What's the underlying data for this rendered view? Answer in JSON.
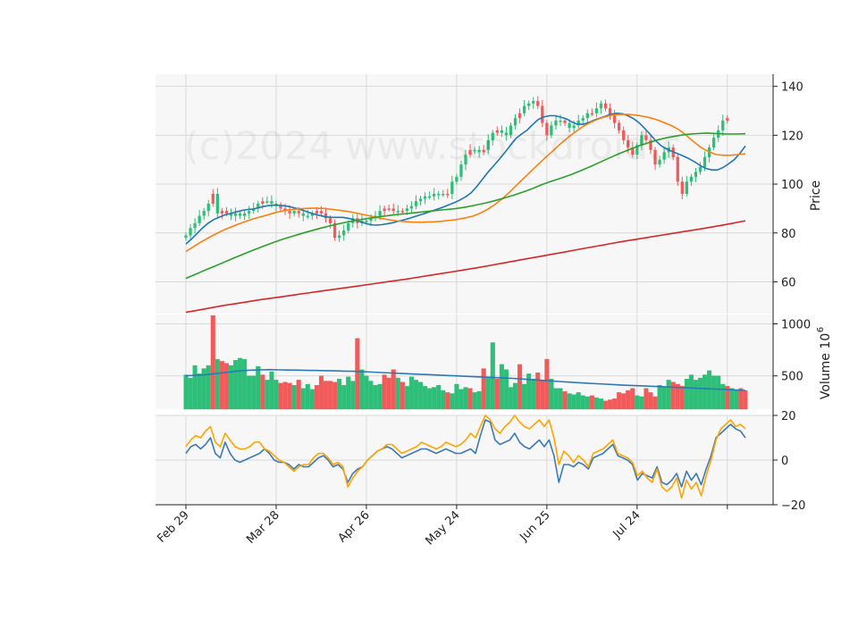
{
  "watermark": "(c)2024 www.stockdroid.c",
  "colors": {
    "panel_bg": "#f7f7f7",
    "grid": "#d9d9d9",
    "up": "#2dbe77",
    "down": "#f25a5a",
    "ma_fast": "#1f77b4",
    "ma_mid": "#ff7f0e",
    "ma_slow": "#2ca02c",
    "ma_long": "#d62728",
    "vol_ma": "#2a7ab8",
    "osc_fast": "#3d7ab7",
    "osc_slow": "#ffa500"
  },
  "chart_data": [
    {
      "type": "candlestick",
      "ylabel": "Price",
      "ylim": [
        47,
        145
      ],
      "yticks": [
        60,
        80,
        100,
        120,
        140
      ],
      "x_tick_labels": [
        "Feb 29",
        "Mar 28",
        "Apr 26",
        "May 24",
        "Jun 25",
        "Jul 24",
        ""
      ],
      "x_tick_indices": [
        0,
        20,
        40,
        60,
        80,
        100,
        120
      ],
      "series": [
        {
          "name": "Close",
          "values": [
            79,
            82,
            84,
            87,
            89,
            92,
            96,
            88,
            89,
            88,
            87,
            88,
            87,
            88,
            89,
            90,
            92,
            93,
            93,
            92,
            91,
            90,
            89,
            88,
            89,
            88,
            87,
            87,
            88,
            89,
            88,
            86,
            84,
            78,
            79,
            81,
            84,
            86,
            84,
            85,
            85,
            86,
            87,
            89,
            90,
            90,
            89,
            89,
            89,
            90,
            91,
            93,
            94,
            95,
            95,
            96,
            96,
            96,
            96,
            101,
            103,
            108,
            112,
            114,
            114,
            113,
            114,
            118,
            121,
            122,
            121,
            120,
            124,
            127,
            129,
            132,
            133,
            134,
            132,
            125,
            120,
            124,
            126,
            126,
            125,
            123,
            124,
            126,
            127,
            129,
            129,
            131,
            133,
            131,
            128,
            125,
            122,
            118,
            115,
            112,
            116,
            120,
            118,
            114,
            108,
            110,
            113,
            115,
            111,
            101,
            96,
            101,
            103,
            105,
            107,
            111,
            115,
            119,
            122,
            126,
            127
          ]
        }
      ],
      "moving_averages": [
        {
          "color_key": "ma_fast",
          "values": [
            75.5,
            77.5,
            79.8,
            82.1,
            84.0,
            85.5,
            86.5,
            87.4,
            88.0,
            88.6,
            89.2,
            89.6,
            89.8,
            90.3,
            90.9,
            91.3,
            91.4,
            91.3,
            91.0,
            90.5,
            89.9,
            89.2,
            88.4,
            87.7,
            87.1,
            86.6,
            86.4,
            86.4,
            86.4,
            86.0,
            85.5,
            84.7,
            84.0,
            83.4,
            83.2,
            83.4,
            83.8,
            84.2,
            84.8,
            85.4,
            86.0,
            86.8,
            87.5,
            88.2,
            89.0,
            89.8,
            90.6,
            91.5,
            92.4,
            93.5,
            94.8,
            96.5,
            99.0,
            102.0,
            104.9,
            107.5,
            110.1,
            112.9,
            115.9,
            118.7,
            120.5,
            122.1,
            124.4,
            126.5,
            127.5,
            128.0,
            128.0,
            127.4,
            126.7,
            125.4,
            124.5,
            124.5,
            125.2,
            126.2,
            127.0,
            127.8,
            128.6,
            129.0,
            128.8,
            128.0,
            126.8,
            125.1,
            122.8,
            120.3,
            117.7,
            115.6,
            114.3,
            113.3,
            112.4,
            111.4,
            110.3,
            109.0,
            107.5,
            106.4,
            105.8,
            105.8,
            106.8,
            108.3,
            110.0,
            112.5,
            115.6
          ]
        },
        {
          "color_key": "ma_mid",
          "values": [
            72.4,
            74.3,
            76.2,
            77.9,
            79.5,
            81.0,
            82.3,
            83.5,
            84.6,
            85.6,
            86.5,
            87.3,
            88.2,
            88.9,
            89.5,
            89.8,
            90.0,
            90.1,
            90.1,
            90.0,
            89.6,
            89.2,
            88.8,
            88.2,
            87.6,
            87.0,
            86.3,
            85.7,
            85.2,
            84.8,
            84.6,
            84.4,
            84.4,
            84.5,
            84.6,
            84.9,
            85.2,
            85.6,
            86.2,
            86.9,
            88.1,
            89.7,
            91.7,
            94.1,
            96.8,
            99.8,
            102.7,
            105.6,
            108.5,
            111.3,
            114.0,
            116.8,
            119.3,
            121.6,
            123.7,
            125.3,
            126.6,
            127.6,
            128.3,
            128.5,
            128.5,
            128.3,
            127.8,
            127.2,
            126.3,
            125.1,
            123.9,
            122.2,
            119.9,
            117.3,
            114.9,
            113.3,
            112.1,
            111.8,
            111.8,
            112.1,
            112.4
          ]
        },
        {
          "color_key": "ma_slow",
          "values": [
            61.4,
            63.1,
            64.8,
            66.4,
            68.1,
            69.8,
            71.4,
            73.0,
            74.5,
            76.0,
            77.4,
            78.6,
            79.8,
            80.9,
            82.0,
            83.0,
            83.9,
            84.7,
            85.4,
            86.0,
            86.6,
            87.1,
            87.6,
            88.0,
            88.4,
            88.8,
            89.2,
            89.6,
            90.0,
            90.6,
            91.4,
            92.2,
            93.2,
            94.3,
            95.5,
            96.8,
            98.3,
            99.9,
            101.3,
            102.6,
            104.0,
            105.6,
            107.3,
            109.1,
            110.9,
            112.6,
            114.2,
            115.7,
            117.0,
            118.2,
            119.1,
            119.8,
            120.4,
            120.7,
            120.9,
            120.7,
            120.5,
            120.5,
            120.6
          ]
        },
        {
          "color_key": "ma_long",
          "values": [
            47.5,
            48.4,
            49.3,
            50.2,
            51.0,
            51.8,
            52.6,
            53.3,
            54.0,
            54.7,
            55.4,
            56.1,
            56.8,
            57.5,
            58.2,
            58.9,
            59.6,
            60.3,
            61.0,
            61.8,
            62.6,
            63.4,
            64.2,
            65.0,
            65.8,
            66.7,
            67.6,
            68.5,
            69.4,
            70.3,
            71.2,
            72.1,
            73.0,
            73.9,
            74.8,
            75.7,
            76.6,
            77.4,
            78.2,
            79.0,
            79.8,
            80.6,
            81.4,
            82.2,
            83.1,
            84.0,
            85.0
          ]
        }
      ]
    },
    {
      "type": "bar",
      "ylabel": "Volume  10",
      "ylabel_exponent": "6",
      "ylim": [
        180,
        1090
      ],
      "yticks": [
        500,
        1000
      ],
      "series": [
        {
          "name": "Volume",
          "values": [
            510,
            480,
            600,
            520,
            570,
            600,
            1080,
            660,
            640,
            620,
            600,
            650,
            670,
            660,
            500,
            500,
            590,
            510,
            460,
            540,
            460,
            430,
            440,
            430,
            410,
            460,
            380,
            420,
            370,
            410,
            500,
            450,
            450,
            440,
            470,
            410,
            490,
            450,
            860,
            560,
            500,
            450,
            410,
            420,
            510,
            480,
            560,
            480,
            440,
            400,
            490,
            460,
            440,
            400,
            380,
            390,
            410,
            360,
            340,
            330,
            420,
            370,
            390,
            380,
            340,
            350,
            570,
            480,
            820,
            470,
            610,
            560,
            390,
            430,
            610,
            420,
            520,
            470,
            530,
            460,
            660,
            470,
            380,
            380,
            350,
            330,
            320,
            340,
            310,
            300,
            310,
            290,
            280,
            260,
            270,
            280,
            340,
            330,
            360,
            380,
            310,
            300,
            380,
            340,
            300,
            410,
            390,
            460,
            440,
            420,
            400,
            470,
            510,
            460,
            480,
            510,
            550,
            500,
            500,
            420,
            400,
            380,
            360,
            380,
            360
          ]
        },
        {
          "name": "Volume MA",
          "values": [
            500,
            505,
            510,
            520,
            530,
            540,
            550,
            555,
            558,
            560,
            558,
            556,
            555,
            553,
            552,
            550,
            548,
            546,
            544,
            540,
            536,
            532,
            528,
            524,
            520,
            516,
            512,
            508,
            504,
            500,
            496,
            492,
            488,
            484,
            480,
            476,
            470,
            464,
            458,
            452,
            446,
            440,
            435,
            430,
            425,
            420,
            415,
            410,
            407,
            404,
            400,
            396,
            392,
            388,
            384,
            380,
            376,
            372,
            368,
            364,
            360
          ]
        }
      ],
      "direction": [
        "up",
        "up",
        "up",
        "up",
        "up",
        "up",
        "down",
        "up",
        "down",
        "down",
        "up",
        "up",
        "up",
        "up",
        "up",
        "up",
        "up",
        "down",
        "up",
        "up",
        "up",
        "down",
        "down",
        "down",
        "up",
        "down",
        "up",
        "up",
        "up",
        "down",
        "down",
        "down",
        "down",
        "down",
        "up",
        "up",
        "up",
        "up",
        "down",
        "up",
        "up",
        "up",
        "up",
        "up",
        "down",
        "down",
        "down",
        "up",
        "down",
        "up",
        "up",
        "up",
        "up",
        "up",
        "up",
        "up",
        "up",
        "up",
        "down",
        "up",
        "up",
        "up",
        "up",
        "down",
        "up",
        "up",
        "down",
        "up",
        "up",
        "down",
        "up",
        "up",
        "up",
        "up",
        "down",
        "up",
        "up",
        "up",
        "down",
        "down",
        "down",
        "up",
        "up",
        "up",
        "down",
        "up",
        "up",
        "up",
        "up",
        "up",
        "down",
        "up",
        "up",
        "down",
        "down",
        "down",
        "down",
        "down",
        "down",
        "down",
        "up",
        "up",
        "down",
        "down",
        "down",
        "up",
        "up",
        "up",
        "down",
        "down",
        "down",
        "up",
        "up",
        "up",
        "up",
        "up",
        "up",
        "up",
        "up",
        "up",
        "down",
        "up",
        "up",
        "down",
        "down"
      ]
    },
    {
      "type": "line",
      "ylim": [
        -20,
        20
      ],
      "yticks": [
        -20,
        0,
        20
      ],
      "series": [
        {
          "name": "",
          "color_key": "osc_fast",
          "values": [
            3,
            6,
            7,
            5,
            7,
            10,
            3,
            1,
            8,
            3,
            0,
            -1,
            0,
            1,
            2,
            3,
            5,
            3,
            0,
            -1,
            -1,
            -2,
            -4,
            -2,
            -3,
            -3,
            -1,
            1,
            2,
            0,
            -3,
            -2,
            -4,
            -10,
            -6,
            -4,
            -3,
            0,
            2,
            4,
            5,
            6,
            5,
            3,
            1,
            2,
            3,
            4,
            5,
            5,
            4,
            3,
            4,
            5,
            4,
            3,
            3,
            4,
            5,
            3,
            11,
            18,
            17,
            9,
            7,
            8,
            9,
            12,
            8,
            6,
            5,
            7,
            9,
            6,
            9,
            2,
            -10,
            -2,
            -2,
            -3,
            -1,
            -2,
            -4,
            1,
            2,
            3,
            5,
            7,
            2,
            1,
            0,
            -2,
            -9,
            -6,
            -7,
            -8,
            -3,
            -10,
            -11,
            -9,
            -6,
            -12,
            -5,
            -9,
            -6,
            -11,
            -4,
            2,
            10,
            12,
            14,
            16,
            14,
            13,
            10
          ]
        },
        {
          "name": "",
          "color_key": "osc_slow",
          "values": [
            6,
            9,
            11,
            10,
            13,
            15,
            8,
            6,
            12,
            9,
            6,
            5,
            5,
            6,
            8,
            8,
            5,
            4,
            2,
            0,
            -1,
            -3,
            -5,
            -3,
            -2,
            -2,
            1,
            3,
            3,
            1,
            -2,
            -1,
            -3,
            -12,
            -8,
            -5,
            -3,
            0,
            2,
            4,
            5,
            7,
            7,
            5,
            3,
            4,
            5,
            6,
            8,
            7,
            6,
            5,
            6,
            8,
            7,
            6,
            7,
            9,
            12,
            10,
            15,
            20,
            18,
            14,
            12,
            15,
            17,
            20,
            17,
            15,
            14,
            16,
            18,
            15,
            18,
            10,
            -2,
            4,
            2,
            -1,
            2,
            0,
            -3,
            3,
            4,
            5,
            7,
            9,
            3,
            2,
            1,
            -1,
            -7,
            -5,
            -8,
            -10,
            -4,
            -12,
            -14,
            -12,
            -8,
            -17,
            -9,
            -13,
            -10,
            -16,
            -7,
            0,
            9,
            14,
            16,
            18,
            15,
            16,
            14
          ]
        }
      ]
    }
  ]
}
